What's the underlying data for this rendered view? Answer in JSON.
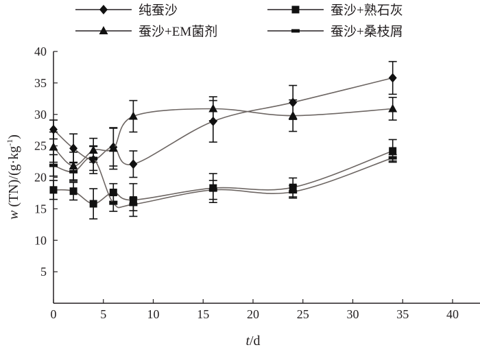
{
  "chart_data": {
    "type": "line",
    "title": "",
    "xlabel": "t/d",
    "xlabel_italic": "t",
    "xlabel_unit": "/d",
    "ylabel_italic": "w",
    "ylabel_rest": " (TN)/(g·kg",
    "ylabel_sup": "-1",
    "ylabel_close": ")",
    "xlim": [
      0,
      40
    ],
    "ylim": [
      0,
      40
    ],
    "xticks": [
      0,
      5,
      10,
      15,
      20,
      25,
      30,
      35,
      40
    ],
    "yticks": [
      5,
      10,
      15,
      20,
      25,
      30,
      35,
      40
    ],
    "grid": false,
    "legend_position": "top",
    "x": [
      0,
      2,
      4,
      6,
      8,
      16,
      24,
      34
    ],
    "series": [
      {
        "name": "纯蚕沙",
        "marker": "diamond",
        "values": [
          27.6,
          24.6,
          22.8,
          24.8,
          22.1,
          28.9,
          31.9,
          35.8
        ],
        "errors": [
          1.5,
          2.3,
          2.2,
          3.0,
          2.1,
          3.3,
          2.7,
          2.6
        ]
      },
      {
        "name": "蚕沙+熟石灰",
        "marker": "square",
        "values": [
          18.0,
          17.8,
          15.8,
          17.6,
          16.4,
          18.3,
          18.4,
          24.2
        ],
        "errors": [
          1.5,
          1.4,
          2.4,
          1.4,
          2.6,
          2.3,
          1.5,
          1.8
        ]
      },
      {
        "name": "蚕沙+EM菌剂",
        "marker": "triangle",
        "values": [
          24.8,
          21.8,
          24.3,
          24.6,
          29.7,
          30.9,
          29.8,
          30.9
        ],
        "errors": [
          2.4,
          2.2,
          1.9,
          3.3,
          2.5,
          1.9,
          2.5,
          1.8
        ]
      },
      {
        "name": "蚕沙+桑枝屑",
        "marker": "bar",
        "values": [
          21.9,
          20.9,
          23.0,
          15.9,
          15.7,
          18.0,
          17.7,
          23.1
        ],
        "errors": [
          1.7,
          1.5,
          1.9,
          1.3,
          1.0,
          1.5,
          1.0,
          0.5
        ]
      }
    ]
  }
}
